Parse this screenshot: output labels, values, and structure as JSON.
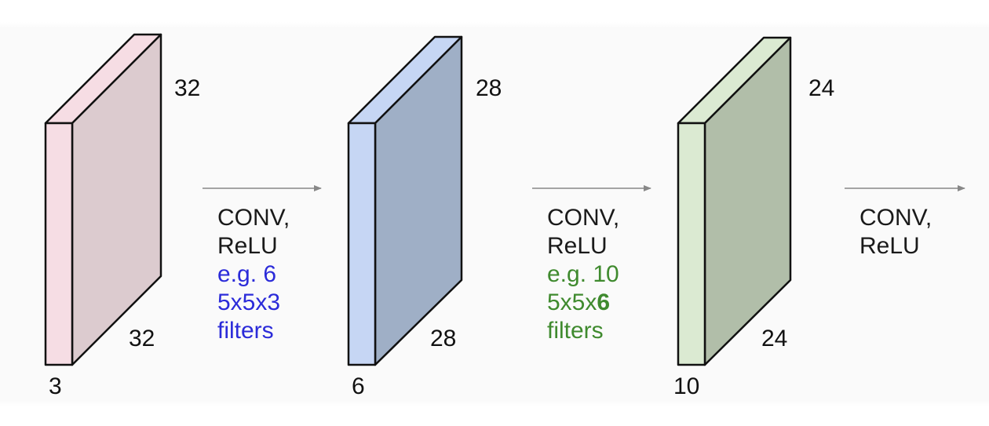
{
  "colors": {
    "pink_front": "#f6dde4",
    "pink_side": "#dccbcf",
    "blue_front": "#c6d6f4",
    "blue_side": "#9fafc6",
    "green_front": "#dbead2",
    "green_side": "#b1bea9",
    "arrow": "#888888",
    "outline": "#111111",
    "blue_text": "#2b2bd9",
    "green_text": "#3f8a2e"
  },
  "volumes": [
    {
      "id": "input",
      "height_label": "32",
      "width_label": "32",
      "depth_label": "3"
    },
    {
      "id": "conv1",
      "height_label": "28",
      "width_label": "28",
      "depth_label": "6"
    },
    {
      "id": "conv2",
      "height_label": "24",
      "width_label": "24",
      "depth_label": "10"
    }
  ],
  "operations": [
    {
      "line1": "CONV,",
      "line2": "ReLU",
      "note_line1": "e.g. 6",
      "note_line2_prefix": "5x5x3",
      "note_line2_bold": "",
      "note_line3": "filters"
    },
    {
      "line1": "CONV,",
      "line2": "ReLU",
      "note_line1": "e.g. 10",
      "note_line2_prefix": "5x5x",
      "note_line2_bold": "6",
      "note_line3": "filters"
    },
    {
      "line1": "CONV,",
      "line2": "ReLU"
    }
  ]
}
